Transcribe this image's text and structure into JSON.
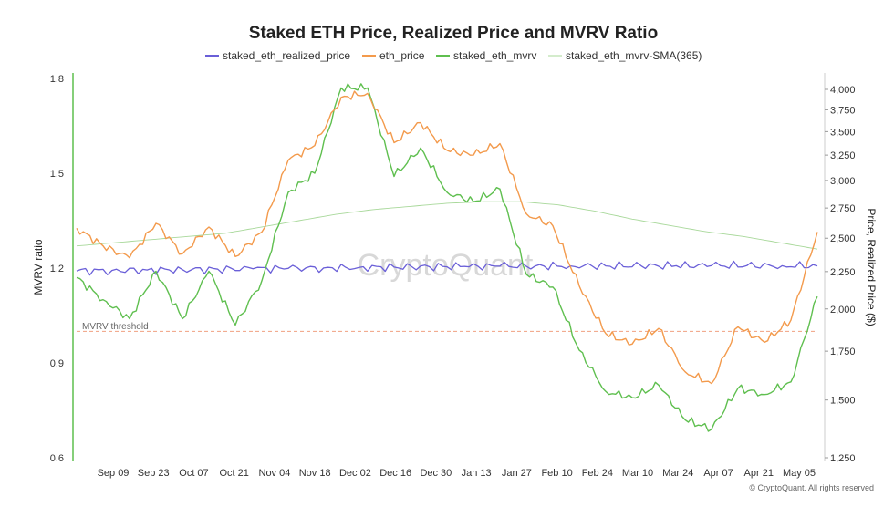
{
  "chart_data": {
    "type": "line",
    "title": "Staked ETH Price, Realized Price and MVRV Ratio",
    "legend": [
      "staked_eth_realized_price",
      "eth_price",
      "staked_eth_mvrv",
      "staked_eth_mvrv-SMA(365)"
    ],
    "ylabel_left": "MVRV ratio",
    "ylabel_right": "Price, Realized Price ($)",
    "left_ticks": [
      "0.6",
      "0.9",
      "1.2",
      "1.5",
      "1.8"
    ],
    "right_ticks": [
      "1,250",
      "1,500",
      "1,750",
      "2,000",
      "2,250",
      "2,500",
      "2,750",
      "3,000",
      "3,250",
      "3,500",
      "3,750",
      "4,000"
    ],
    "x_labels": [
      "Sep 09",
      "Sep 23",
      "Oct 07",
      "Oct 21",
      "Nov 04",
      "Nov 18",
      "Dec 02",
      "Dec 16",
      "Dec 30",
      "Jan 13",
      "Jan 27",
      "Feb 10",
      "Feb 24",
      "Mar 10",
      "Mar 24",
      "Apr 07",
      "Apr 21",
      "May 05"
    ],
    "ylim_left": [
      0.6,
      1.8
    ],
    "ylim_right": [
      1250,
      4100
    ],
    "threshold": 1.0,
    "threshold_label": "MVRV threshold",
    "watermark": "CryptoQuant",
    "credit": "© CryptoQuant. All rights reserved",
    "colors": {
      "realized": "#6a5fd8",
      "price": "#f39a4c",
      "mvrv": "#5fbf4f",
      "sma": "#a8d89a",
      "threshold": "#f0a080"
    },
    "series": [
      {
        "name": "staked_eth_realized_price",
        "axis": "right",
        "values": [
          2255,
          2258,
          2261,
          2264,
          2267,
          2270,
          2273,
          2276,
          2279,
          2282,
          2285,
          2287,
          2289,
          2290,
          2291,
          2291,
          2292,
          2292,
          2293,
          2293,
          2292,
          2291
        ]
      },
      {
        "name": "eth_price",
        "axis": "right",
        "values": [
          2580,
          2440,
          2350,
          2620,
          2380,
          2590,
          2360,
          2550,
          3200,
          3350,
          3900,
          3950,
          3380,
          3600,
          3300,
          3250,
          3370,
          2700,
          2600,
          2150,
          1850,
          1790,
          1880,
          1640,
          1580,
          1890,
          1800,
          1930,
          2550
        ]
      },
      {
        "name": "staked_eth_mvrv",
        "axis": "left",
        "values": [
          1.17,
          1.1,
          1.04,
          1.19,
          1.04,
          1.19,
          1.02,
          1.16,
          1.44,
          1.5,
          1.77,
          1.77,
          1.49,
          1.58,
          1.44,
          1.41,
          1.45,
          1.18,
          1.14,
          0.94,
          0.81,
          0.79,
          0.83,
          0.72,
          0.69,
          0.82,
          0.8,
          0.84,
          1.11
        ]
      },
      {
        "name": "staked_eth_mvrv-SMA(365)",
        "axis": "left",
        "values": [
          1.27,
          1.28,
          1.29,
          1.3,
          1.31,
          1.33,
          1.35,
          1.37,
          1.385,
          1.395,
          1.405,
          1.41,
          1.41,
          1.4,
          1.38,
          1.355,
          1.335,
          1.315,
          1.3,
          1.28,
          1.26
        ]
      }
    ]
  }
}
